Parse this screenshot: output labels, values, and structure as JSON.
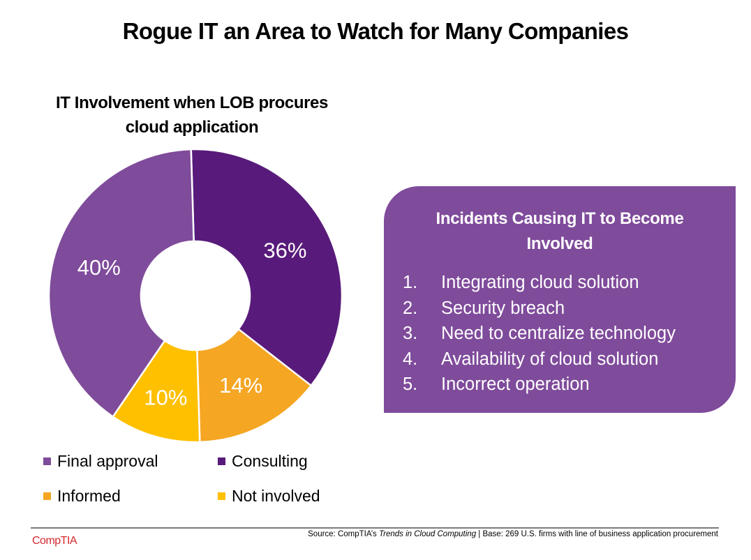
{
  "slide": {
    "title": "Rogue IT an Area to Watch for Many Companies"
  },
  "chart_data": {
    "type": "pie",
    "variant": "donut",
    "title": "IT Involvement when LOB procures cloud application",
    "title_lines": [
      "IT Involvement when LOB procures",
      "cloud application"
    ],
    "categories": [
      "Consulting",
      "Informed",
      "Not involved",
      "Final approval"
    ],
    "values": [
      36,
      14,
      10,
      40
    ],
    "unit": "%",
    "data_labels": [
      "36%",
      "14%",
      "10%",
      "40%"
    ],
    "colors": [
      "#581b7b",
      "#f5a623",
      "#ffc000",
      "#7f4b9b"
    ],
    "legend": {
      "placement": "bottom",
      "entries": [
        {
          "label": "Final approval",
          "color": "#7f4b9b"
        },
        {
          "label": "Consulting",
          "color": "#581b7b"
        },
        {
          "label": "Informed",
          "color": "#f5a623"
        },
        {
          "label": "Not involved",
          "color": "#ffc000"
        }
      ]
    },
    "start": "12 o'clock",
    "direction": "clockwise"
  },
  "panel": {
    "title_lines": [
      "Incidents Causing IT to Become",
      "Involved"
    ],
    "items": [
      {
        "num": "1.",
        "text": "Integrating cloud solution"
      },
      {
        "num": "2.",
        "text": "Security breach"
      },
      {
        "num": "3.",
        "text": "Need to centralize technology"
      },
      {
        "num": "4.",
        "text": "Availability of cloud solution"
      },
      {
        "num": "5.",
        "text": "Incorrect operation"
      }
    ],
    "color": "#7f4b9b"
  },
  "footer": {
    "logo": "CompTIA",
    "source_prefix": "Source: CompTIA’s ",
    "source_italic": "Trends in Cloud Computing",
    "source_suffix": " | Base: 269 U.S. firms with line of business application procurement"
  }
}
